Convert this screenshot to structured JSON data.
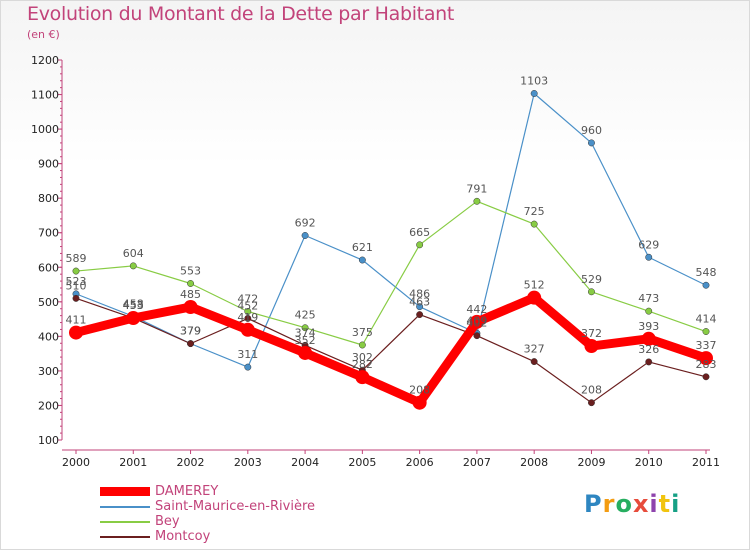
{
  "title": "Evolution du Montant de la Dette par Habitant",
  "subtitle": "(en €)",
  "logo": {
    "text": "Proxiti",
    "colors": [
      "#2e86c1",
      "#f39c12",
      "#27ae60",
      "#e74c3c",
      "#8e44ad",
      "#f1c40f",
      "#16a085"
    ]
  },
  "chart_data": {
    "type": "line",
    "title": "Evolution du Montant de la Dette par Habitant",
    "ylabel": "(en €)",
    "xlabel": "",
    "x": [
      "2000",
      "2001",
      "2002",
      "2003",
      "2004",
      "2005",
      "2006",
      "2007",
      "2008",
      "2009",
      "2010",
      "2011"
    ],
    "ylim": [
      100,
      1200
    ],
    "yticks": [
      "100",
      "200",
      "300",
      "400",
      "500",
      "600",
      "700",
      "800",
      "900",
      "1000",
      "1100",
      "1200"
    ],
    "grid": false,
    "legend_position": "bottom-left",
    "series": [
      {
        "name": "DAMEREY",
        "color": "#ff0000",
        "values": [
          411,
          453,
          485,
          419,
          352,
          282,
          208,
          442,
          512,
          372,
          393,
          337
        ]
      },
      {
        "name": "Saint-Maurice-en-Rivière",
        "color": "#4a90c8",
        "values": [
          523,
          458,
          379,
          311,
          692,
          621,
          486,
          409,
          1103,
          960,
          629,
          548
        ]
      },
      {
        "name": "Bey",
        "color": "#88cc44",
        "values": [
          589,
          604,
          553,
          472,
          425,
          375,
          665,
          791,
          725,
          529,
          473,
          414
        ]
      },
      {
        "name": "Montcoy",
        "color": "#6b1f1f",
        "values": [
          510,
          453,
          379,
          452,
          374,
          302,
          463,
          402,
          327,
          208,
          326,
          283
        ]
      }
    ]
  }
}
